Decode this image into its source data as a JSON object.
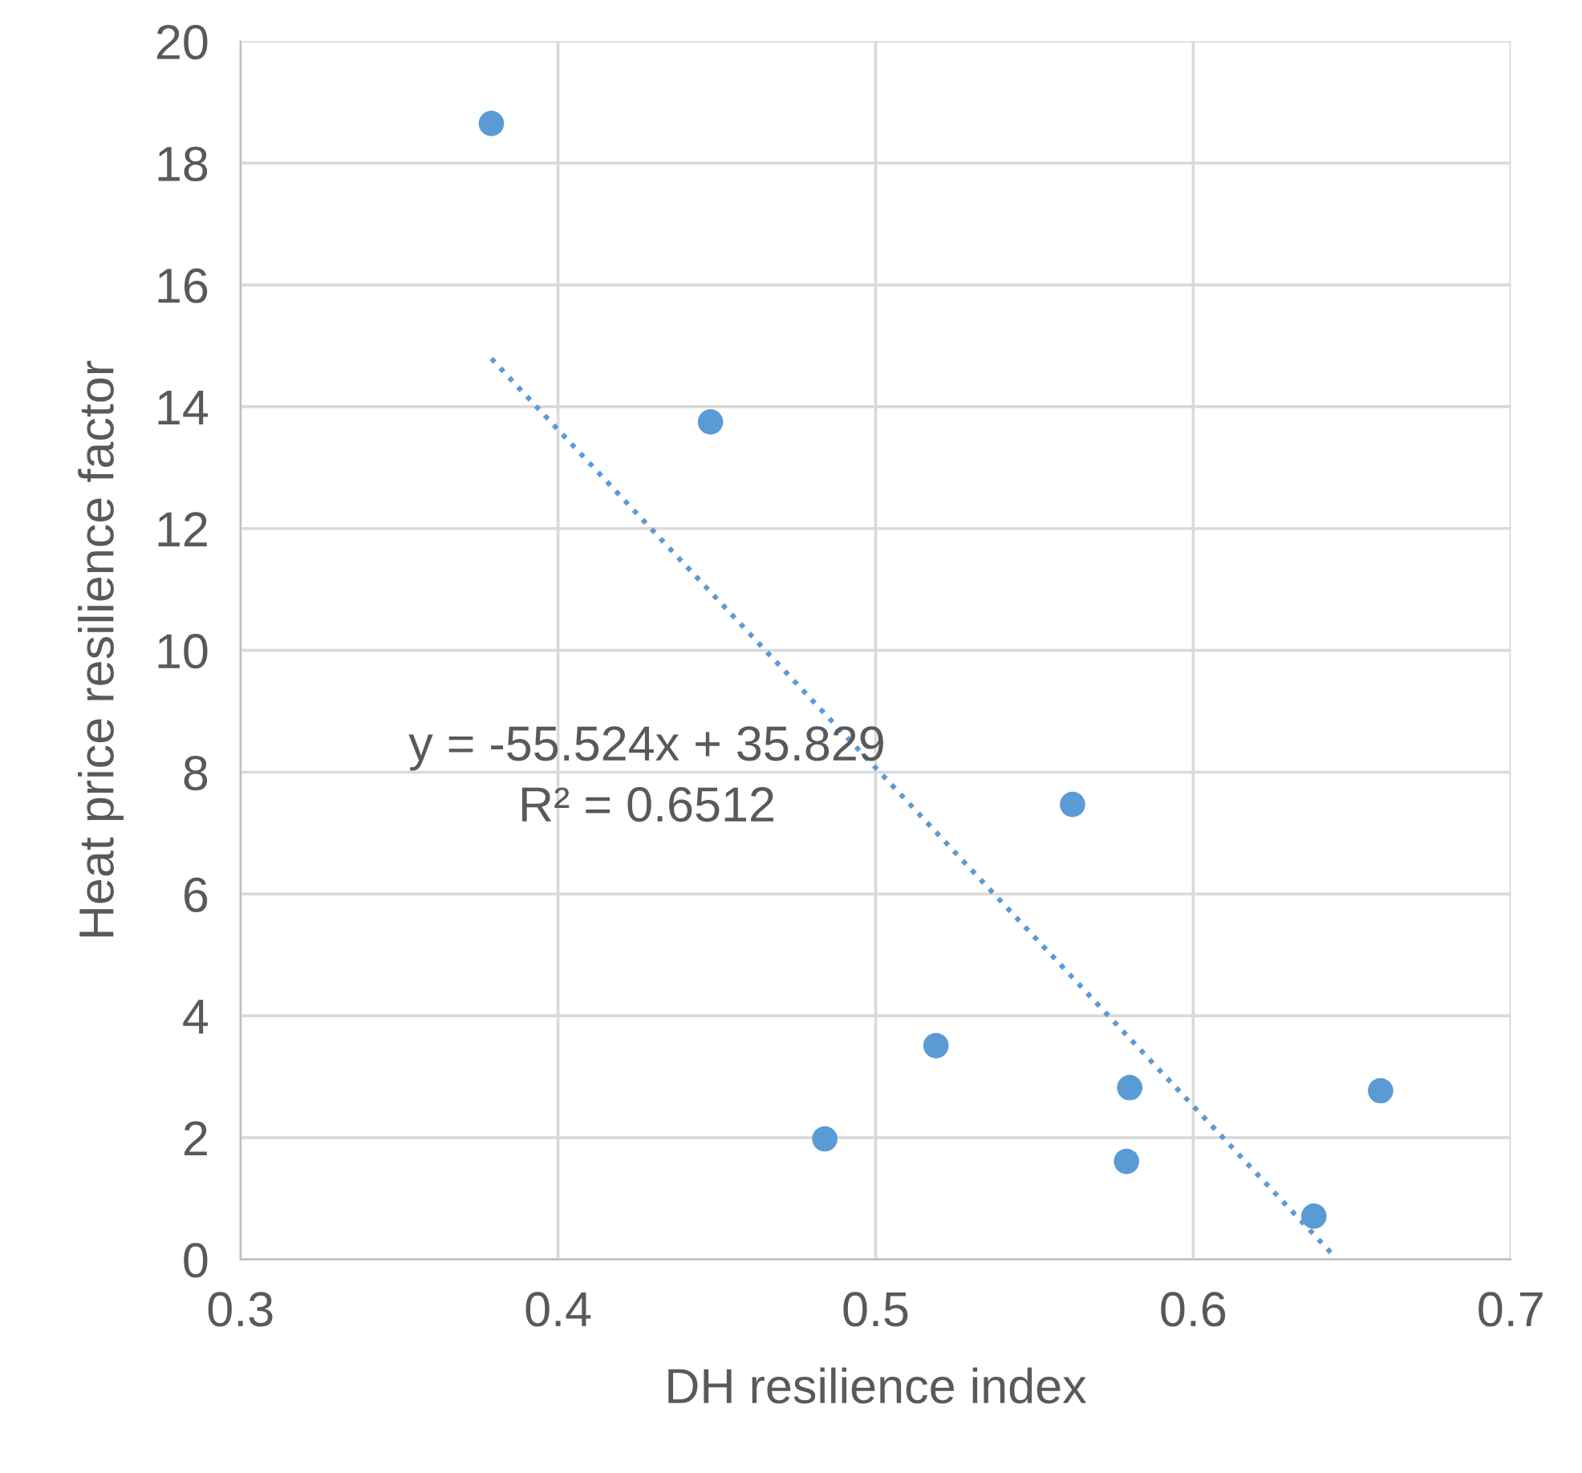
{
  "chart_data": {
    "type": "scatter",
    "xlabel": "DH resilience index",
    "ylabel": "Heat price resilience factor",
    "series": [
      {
        "color": "#5b9bd5",
        "marker": "circle",
        "x": [
          0.379,
          0.448,
          0.484,
          0.519,
          0.562,
          0.58,
          0.579,
          0.638,
          0.659
        ],
        "values": [
          18.65,
          13.75,
          1.98,
          3.51,
          7.47,
          2.82,
          1.61,
          0.71,
          2.77
        ]
      },
      {
        "type": "line",
        "color": "#5b9bd5",
        "line_style": "dotted",
        "marker": "none",
        "x": [
          0.379,
          0.645
        ],
        "values": [
          14.79,
          0.02
        ]
      }
    ],
    "xlim": [
      0.3,
      0.7
    ],
    "xticks": [
      0.3,
      0.4,
      0.5,
      0.6,
      0.7
    ],
    "ylim": [
      0,
      20
    ],
    "yticks": [
      0,
      2,
      4,
      6,
      8,
      10,
      12,
      14,
      16,
      18,
      20
    ],
    "grid": true,
    "legend": false,
    "annotations": [
      "y = -55.524x + 35.829",
      "R² = 0.6512"
    ]
  }
}
